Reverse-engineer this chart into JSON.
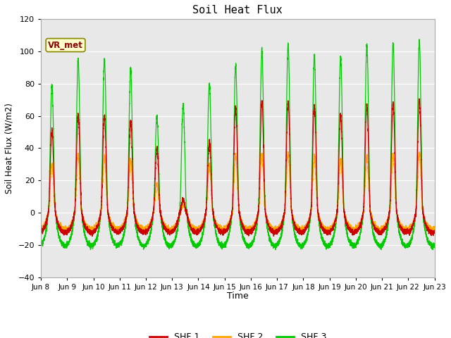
{
  "title": "Soil Heat Flux",
  "ylabel": "Soil Heat Flux (W/m2)",
  "xlabel": "Time",
  "xlim_start_day": 8,
  "xlim_end_day": 23,
  "ylim": [
    -40,
    120
  ],
  "yticks": [
    -40,
    -20,
    0,
    20,
    40,
    60,
    80,
    100,
    120
  ],
  "bg_color": "#e8e8e8",
  "fig_color": "#ffffff",
  "grid_color": "#ffffff",
  "shf1_color": "#cc0000",
  "shf2_color": "#ffa500",
  "shf3_color": "#00cc00",
  "legend_labels": [
    "SHF 1",
    "SHF 2",
    "SHF 3"
  ],
  "annotation_text": "VR_met",
  "num_days": 15,
  "start_day": 8,
  "points_per_day": 480,
  "shf1_day_peaks": [
    51,
    61,
    60,
    57,
    40,
    8,
    44,
    65,
    69,
    69,
    66,
    61,
    67,
    68,
    70
  ],
  "shf2_day_peaks": [
    30,
    36,
    35,
    32,
    18,
    5,
    30,
    35,
    36,
    37,
    35,
    33,
    35,
    36,
    37
  ],
  "shf3_day_peaks": [
    79,
    95,
    95,
    89,
    60,
    67,
    80,
    91,
    101,
    104,
    97,
    97,
    104,
    105,
    106
  ],
  "night_trough_shf1": -13,
  "night_trough_shf2": -11,
  "night_trough_shf3": -22
}
